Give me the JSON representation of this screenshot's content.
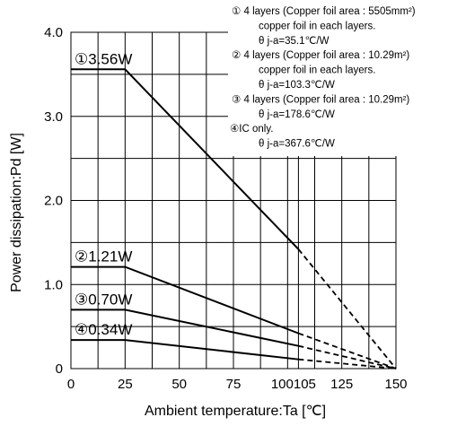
{
  "chart_data": {
    "type": "line",
    "xlabel": "Ambient temperature:Ta [℃]",
    "ylabel": "Power dissipation:Pd [W]",
    "xlim": [
      0,
      150
    ],
    "ylim": [
      0,
      4.0
    ],
    "xticks": [
      "0",
      "25",
      "50",
      "75",
      "100",
      "105",
      "125",
      "150"
    ],
    "xtick_values": [
      0,
      25,
      50,
      75,
      100,
      105,
      125,
      150
    ],
    "yticks": [
      "0",
      "1.0",
      "2.0",
      "3.0",
      "4.0"
    ],
    "ytick_values": [
      0,
      1.0,
      2.0,
      3.0,
      4.0
    ],
    "grid": true,
    "series": [
      {
        "label": "①",
        "callout": "①3.56W",
        "points_solid": [
          [
            0,
            3.56
          ],
          [
            25,
            3.56
          ],
          [
            105,
            1.42
          ]
        ],
        "points_dashed": [
          [
            105,
            1.42
          ],
          [
            150,
            0
          ]
        ]
      },
      {
        "label": "②",
        "callout": "②1.21W",
        "points_solid": [
          [
            0,
            1.21
          ],
          [
            25,
            1.21
          ],
          [
            105,
            0.42
          ]
        ],
        "points_dashed": [
          [
            105,
            0.42
          ],
          [
            150,
            0
          ]
        ]
      },
      {
        "label": "③",
        "callout": "③0.70W",
        "points_solid": [
          [
            0,
            0.7
          ],
          [
            25,
            0.7
          ],
          [
            105,
            0.27
          ]
        ],
        "points_dashed": [
          [
            105,
            0.27
          ],
          [
            150,
            0
          ]
        ]
      },
      {
        "label": "④",
        "callout": "④0.34W",
        "points_solid": [
          [
            0,
            0.34
          ],
          [
            25,
            0.34
          ],
          [
            105,
            0.11
          ]
        ],
        "points_dashed": [
          [
            105,
            0.11
          ],
          [
            150,
            0
          ]
        ]
      }
    ],
    "legend_placement": "top-right",
    "legend_lines": [
      "① 4 layers (Copper foil area : 5505mm²)",
      "copper foil in each layers.",
      "θ j-a=35.1℃/W",
      "② 4 layers (Copper foil area : 10.29m²)",
      "copper foil in each layers.",
      "θ j-a=103.3℃/W",
      "③ 4 layers (Copper foil area : 10.29m²)",
      "θ j-a=178.6℃/W",
      "④IC only.",
      "θ j-a=367.6℃/W"
    ]
  }
}
